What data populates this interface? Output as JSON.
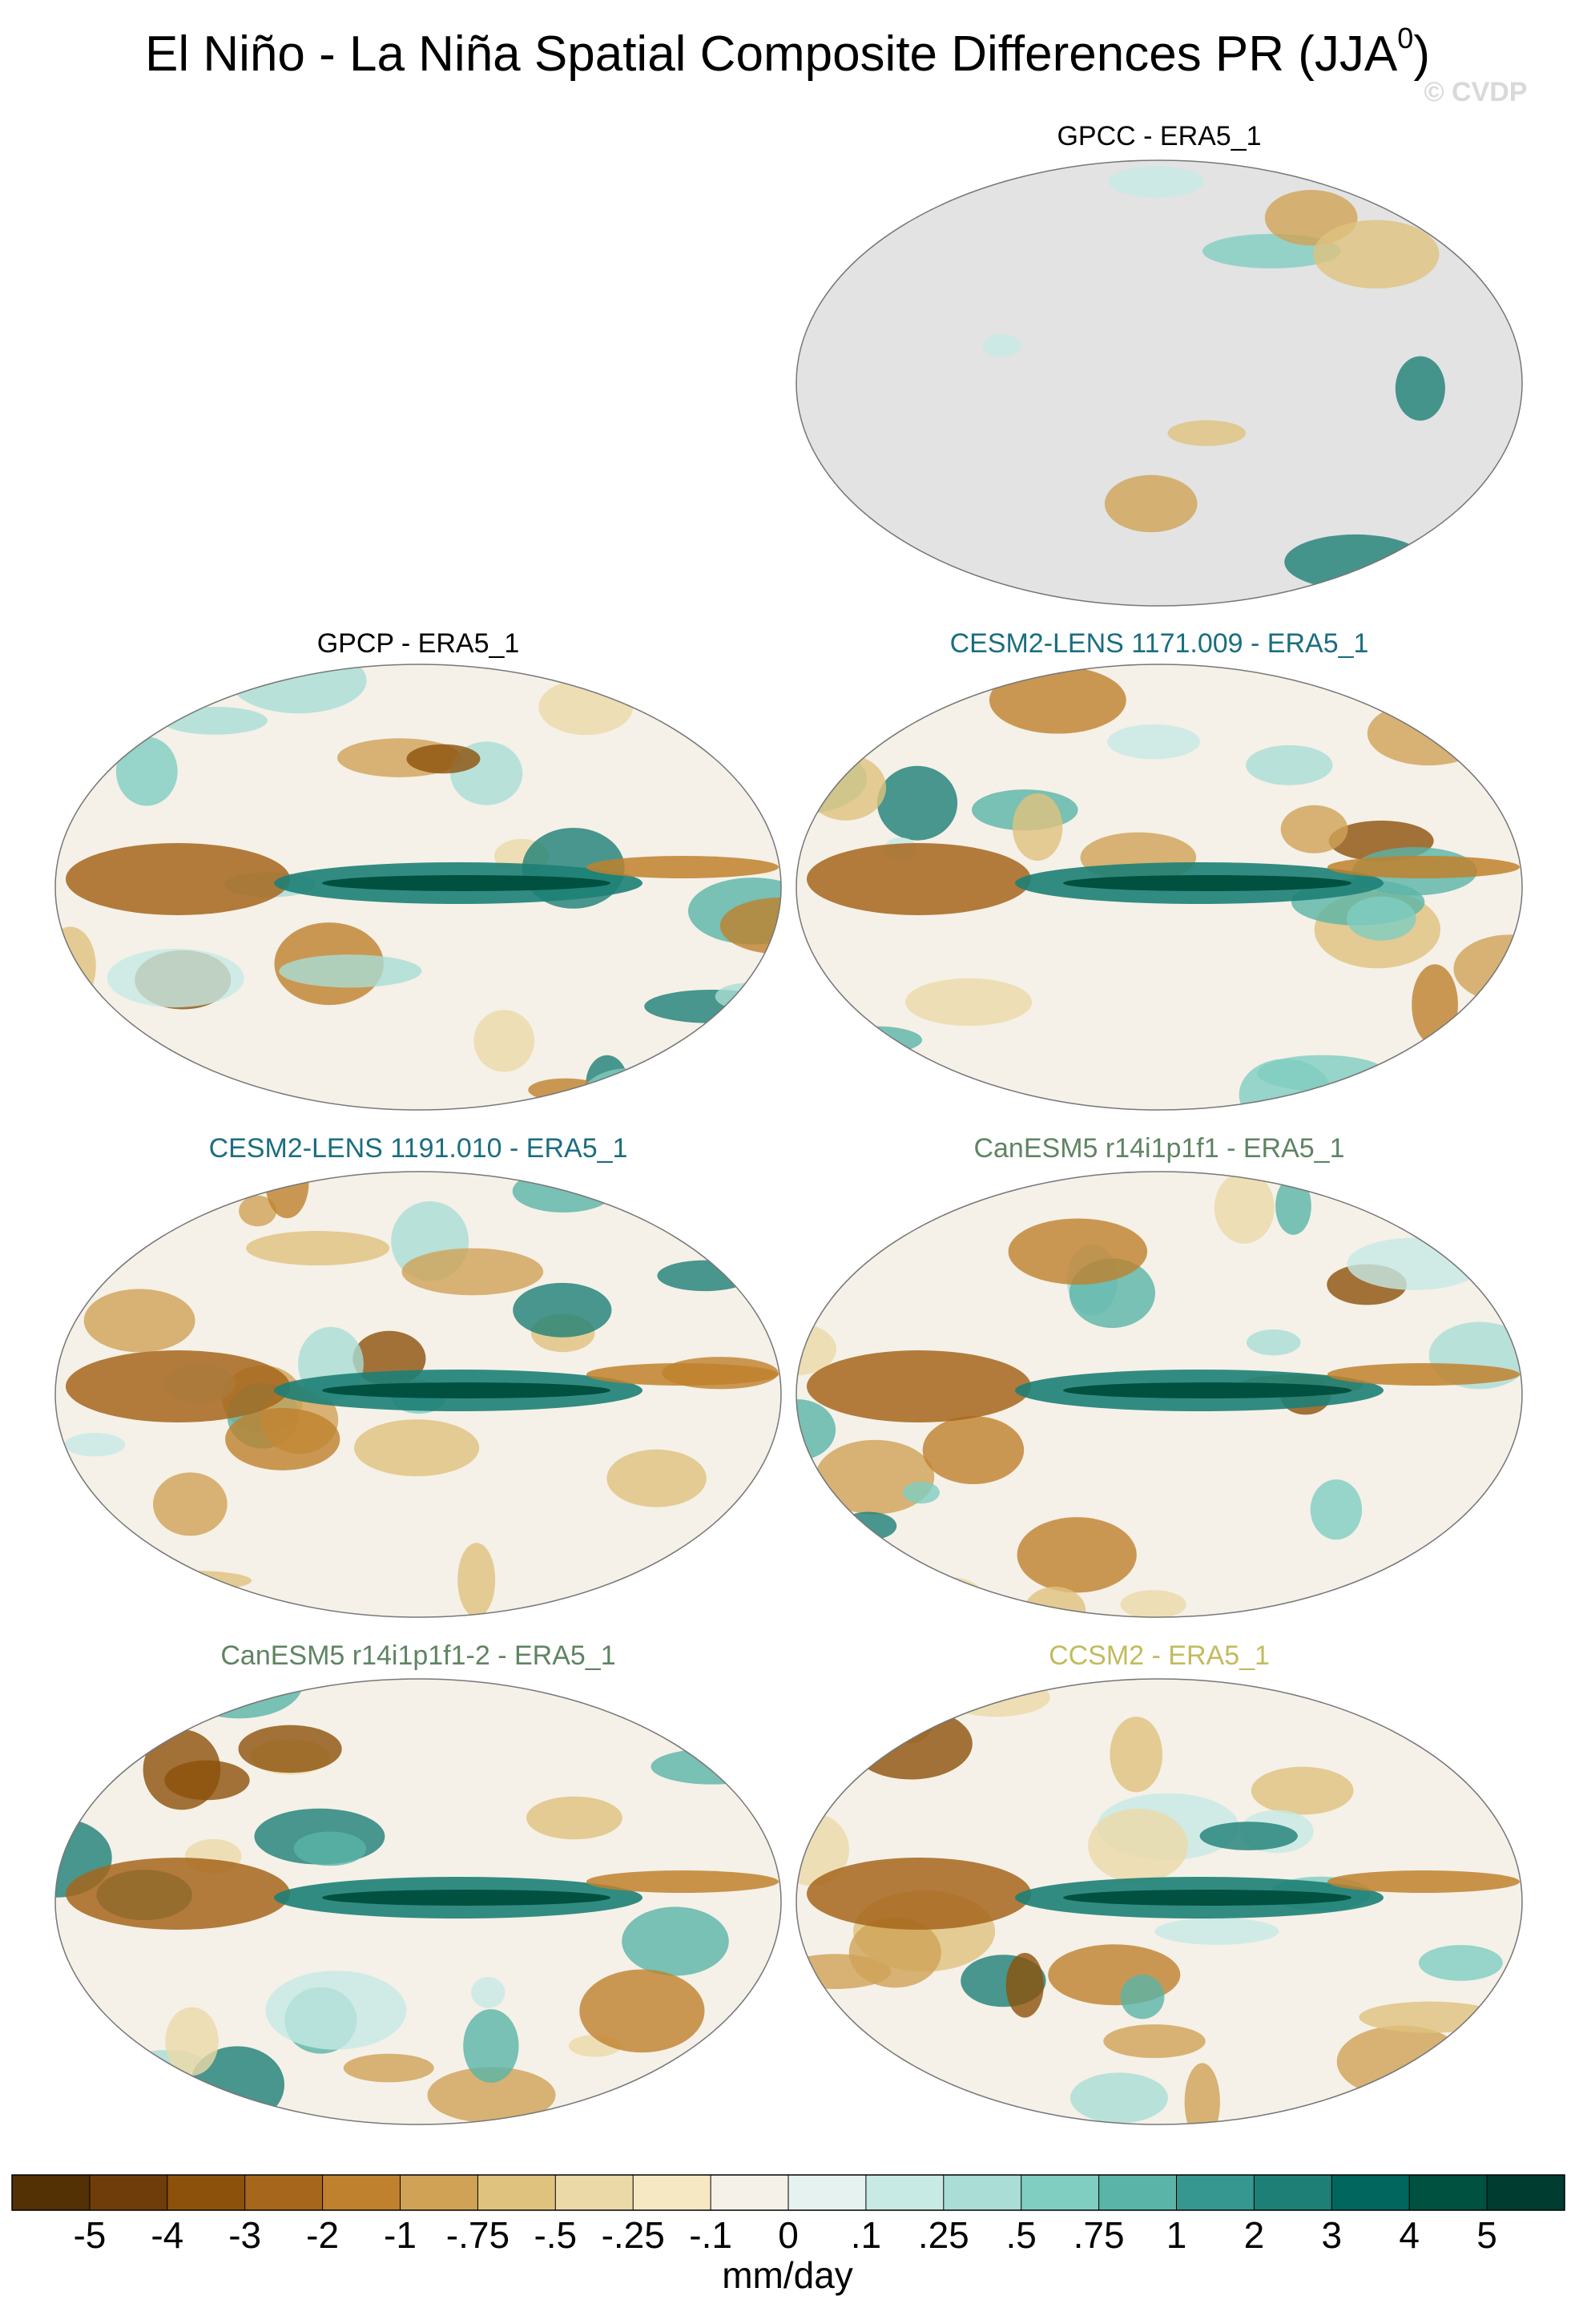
{
  "title": {
    "main": "El Niño - La Niña Spatial Composite Differences PR (JJA",
    "superscript": "0",
    "end": ")"
  },
  "watermark": "© CVDP",
  "panels": [
    {
      "title": "GPCC - ERA5_1",
      "color": "#000000",
      "background": "#e3e3e3"
    },
    {
      "title": "GPCP - ERA5_1",
      "color": "#000000"
    },
    {
      "title": "CESM2-LENS 1171.009 - ERA5_1",
      "color": "#1b6e80"
    },
    {
      "title": "CESM2-LENS 1191.010 - ERA5_1",
      "color": "#1b6e80"
    },
    {
      "title": "CanESM5 r14i1p1f1 - ERA5_1",
      "color": "#5f8462"
    },
    {
      "title": "CanESM5 r14i1p1f1-2 - ERA5_1",
      "color": "#5f8462"
    },
    {
      "title": "CCSM2 - ERA5_1",
      "color": "#c2bb5e"
    }
  ],
  "colorbar": {
    "colors": [
      "#543005",
      "#6f3d0a",
      "#8c510a",
      "#a6661c",
      "#bf812d",
      "#cfa256",
      "#dfc27d",
      "#ecd9a8",
      "#f6e8c3",
      "#f5f1e8",
      "#e6f2f0",
      "#c7eae5",
      "#a9ddd5",
      "#80cdc1",
      "#5ab4a8",
      "#35978f",
      "#1d7f76",
      "#01665e",
      "#00513f",
      "#003c30"
    ],
    "levels": [
      -5,
      -4,
      -3,
      -2,
      -1,
      {
        "value": -0.75,
        "label": "-.75"
      },
      {
        "value": -0.5,
        "label": "-.5"
      },
      {
        "value": -0.25,
        "label": "-.25"
      },
      {
        "value": -0.1,
        "label": "-.1"
      },
      0,
      {
        "value": 0.1,
        "label": ".1"
      },
      {
        "value": 0.25,
        "label": ".25"
      },
      {
        "value": 0.5,
        "label": ".5"
      },
      {
        "value": 0.75,
        "label": ".75"
      },
      1,
      2,
      3,
      4,
      5
    ],
    "units": "mm/day"
  }
}
